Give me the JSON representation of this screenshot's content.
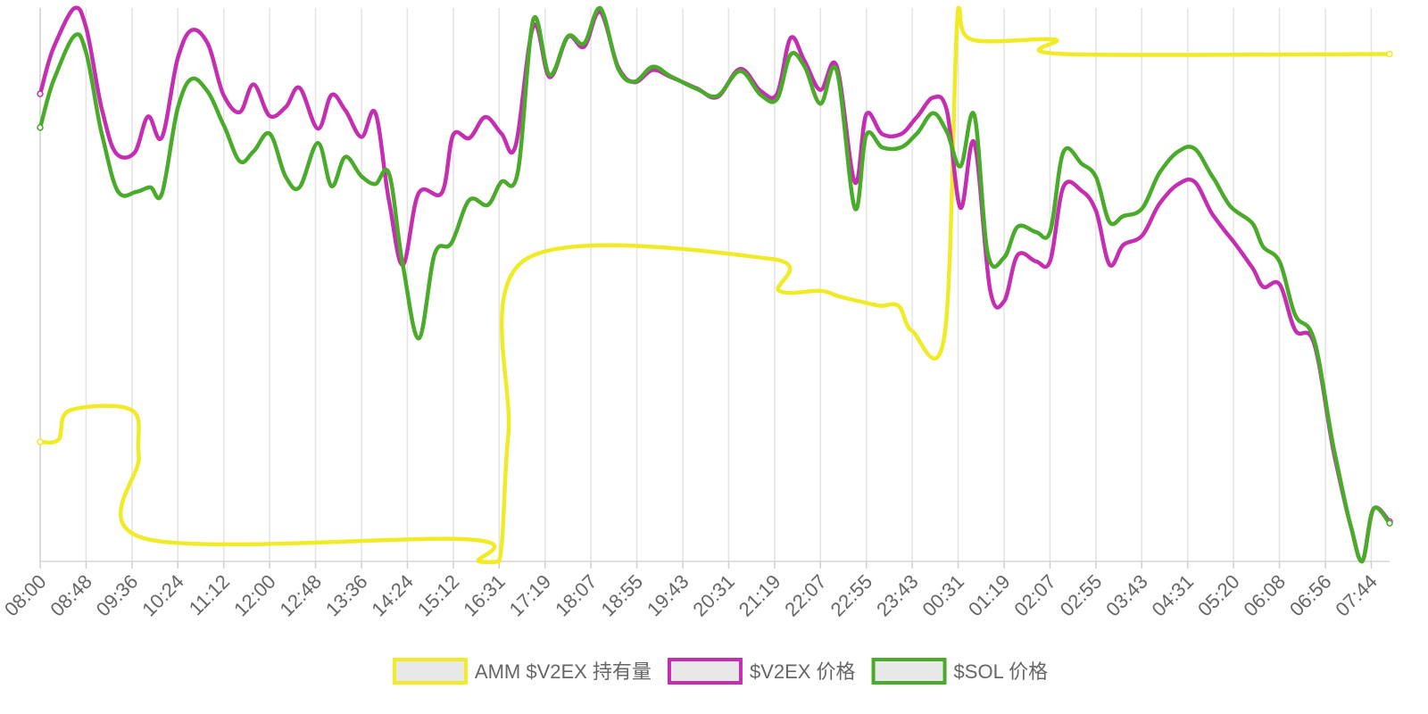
{
  "chart_data": {
    "type": "line",
    "x_ticks": [
      "08:00",
      "08:48",
      "09:36",
      "10:24",
      "11:12",
      "12:00",
      "12:48",
      "13:36",
      "14:24",
      "15:12",
      "16:31",
      "17:19",
      "18:07",
      "18:55",
      "19:43",
      "20:31",
      "21:19",
      "22:07",
      "22:55",
      "23:43",
      "00:31",
      "01:19",
      "02:07",
      "02:55",
      "03:43",
      "04:31",
      "05:20",
      "06:08",
      "06:56",
      "07:44"
    ],
    "grid": true,
    "legend_position": "bottom",
    "ylim": [
      0,
      100
    ],
    "series": [
      {
        "name": "AMM $V2EX 持有量",
        "color": "#f0eb26",
        "points": [
          [
            0,
            21.6
          ],
          [
            0.4,
            22
          ],
          [
            0.65,
            27.3
          ],
          [
            2.0,
            27.3
          ],
          [
            2.15,
            19
          ],
          [
            2.35,
            4
          ],
          [
            9.3,
            4
          ],
          [
            9.55,
            0
          ],
          [
            10.0,
            0
          ],
          [
            10.2,
            23
          ],
          [
            10.6,
            54.7
          ],
          [
            15.9,
            54.7
          ],
          [
            16.1,
            48.9
          ],
          [
            17.0,
            48.9
          ],
          [
            17.4,
            47.9
          ],
          [
            17.9,
            46.9
          ],
          [
            18.3,
            46.2
          ],
          [
            18.7,
            46.2
          ],
          [
            19.0,
            41.6
          ],
          [
            19.7,
            40.7
          ],
          [
            20.0,
            100
          ],
          [
            20.3,
            94.3
          ],
          [
            22.1,
            94.3
          ],
          [
            22.3,
            91.7
          ],
          [
            29.4,
            91.7
          ]
        ]
      },
      {
        "name": "$V2EX 价格",
        "color": "#c42eb0",
        "points": [
          [
            0,
            84.5
          ],
          [
            0.3,
            93
          ],
          [
            0.75,
            100
          ],
          [
            1.0,
            96.5
          ],
          [
            1.35,
            81.5
          ],
          [
            1.65,
            73.8
          ],
          [
            2.05,
            73.8
          ],
          [
            2.35,
            80.4
          ],
          [
            2.65,
            76.6
          ],
          [
            3.0,
            91
          ],
          [
            3.3,
            96
          ],
          [
            3.65,
            93.6
          ],
          [
            4.0,
            84.2
          ],
          [
            4.35,
            81.2
          ],
          [
            4.65,
            86.2
          ],
          [
            5.0,
            80.5
          ],
          [
            5.35,
            82.1
          ],
          [
            5.65,
            85.6
          ],
          [
            6.05,
            78.2
          ],
          [
            6.35,
            84.3
          ],
          [
            6.65,
            81.5
          ],
          [
            7.0,
            76.7
          ],
          [
            7.3,
            81.1
          ],
          [
            7.6,
            65.2
          ],
          [
            7.9,
            53.6
          ],
          [
            8.25,
            66.6
          ],
          [
            8.75,
            66.6
          ],
          [
            9.0,
            77.1
          ],
          [
            9.35,
            76.5
          ],
          [
            9.7,
            80.3
          ],
          [
            10.05,
            77.3
          ],
          [
            10.35,
            74.9
          ],
          [
            10.75,
            96.8
          ],
          [
            11.1,
            87.5
          ],
          [
            11.5,
            94.8
          ],
          [
            11.85,
            93
          ],
          [
            12.2,
            99.3
          ],
          [
            12.6,
            89.2
          ],
          [
            12.95,
            86.6
          ],
          [
            13.35,
            88.8
          ],
          [
            13.75,
            87.5
          ],
          [
            14.3,
            85.5
          ],
          [
            14.75,
            83.9
          ],
          [
            15.25,
            89
          ],
          [
            15.7,
            85
          ],
          [
            16.05,
            84.4
          ],
          [
            16.35,
            94.6
          ],
          [
            16.65,
            90.5
          ],
          [
            17.0,
            85.2
          ],
          [
            17.35,
            89.6
          ],
          [
            17.75,
            68.5
          ],
          [
            18.0,
            80.8
          ],
          [
            18.35,
            77.2
          ],
          [
            18.75,
            77.2
          ],
          [
            19.1,
            80.3
          ],
          [
            19.45,
            83.8
          ],
          [
            19.75,
            81.6
          ],
          [
            20.05,
            63.9
          ],
          [
            20.35,
            75.7
          ],
          [
            20.7,
            48.9
          ],
          [
            21.0,
            47
          ],
          [
            21.3,
            55.4
          ],
          [
            21.7,
            54.2
          ],
          [
            22.0,
            54.2
          ],
          [
            22.3,
            67.8
          ],
          [
            22.7,
            66.9
          ],
          [
            23.0,
            63.4
          ],
          [
            23.3,
            53.6
          ],
          [
            23.6,
            57.2
          ],
          [
            24.0,
            58.8
          ],
          [
            24.4,
            64.8
          ],
          [
            24.8,
            68.2
          ],
          [
            25.15,
            68.6
          ],
          [
            25.55,
            62.6
          ],
          [
            25.95,
            58.3
          ],
          [
            26.4,
            53.2
          ],
          [
            26.65,
            49.6
          ],
          [
            27.0,
            50.1
          ],
          [
            27.35,
            41.7
          ],
          [
            27.75,
            39.5
          ],
          [
            28.2,
            19
          ],
          [
            28.55,
            6.5
          ],
          [
            28.8,
            0
          ],
          [
            29.05,
            9.5
          ],
          [
            29.4,
            7.2
          ]
        ]
      },
      {
        "name": "$SOL 价格",
        "color": "#4aab2a",
        "points": [
          [
            0,
            78.4
          ],
          [
            0.3,
            87.1
          ],
          [
            0.75,
            95
          ],
          [
            1.0,
            92
          ],
          [
            1.35,
            77
          ],
          [
            1.7,
            66.8
          ],
          [
            2.1,
            66.8
          ],
          [
            2.4,
            67.6
          ],
          [
            2.65,
            66.4
          ],
          [
            3.0,
            82
          ],
          [
            3.3,
            87.2
          ],
          [
            3.65,
            84.9
          ],
          [
            4.0,
            78.8
          ],
          [
            4.35,
            72.3
          ],
          [
            4.65,
            74.1
          ],
          [
            5.0,
            77.3
          ],
          [
            5.35,
            69.5
          ],
          [
            5.65,
            67.6
          ],
          [
            6.05,
            75.6
          ],
          [
            6.35,
            67.8
          ],
          [
            6.65,
            73.1
          ],
          [
            7.0,
            69.6
          ],
          [
            7.3,
            68.2
          ],
          [
            7.6,
            70.1
          ],
          [
            7.9,
            53.6
          ],
          [
            8.25,
            40.3
          ],
          [
            8.6,
            55.7
          ],
          [
            8.95,
            57.4
          ],
          [
            9.35,
            65.3
          ],
          [
            9.75,
            64.4
          ],
          [
            10.05,
            68.6
          ],
          [
            10.4,
            70.1
          ],
          [
            10.75,
            98.1
          ],
          [
            11.1,
            87.9
          ],
          [
            11.5,
            94.9
          ],
          [
            11.85,
            93.6
          ],
          [
            12.2,
            100
          ],
          [
            12.6,
            88.9
          ],
          [
            12.95,
            86.7
          ],
          [
            13.35,
            89.4
          ],
          [
            13.75,
            87.6
          ],
          [
            14.3,
            85.4
          ],
          [
            14.75,
            84.1
          ],
          [
            15.25,
            88.6
          ],
          [
            15.7,
            84.3
          ],
          [
            16.05,
            83.5
          ],
          [
            16.35,
            91.6
          ],
          [
            16.65,
            89.5
          ],
          [
            17.0,
            82.7
          ],
          [
            17.35,
            88.8
          ],
          [
            17.75,
            63.8
          ],
          [
            18.0,
            77.1
          ],
          [
            18.35,
            74.8
          ],
          [
            18.75,
            74.8
          ],
          [
            19.1,
            77.3
          ],
          [
            19.45,
            81
          ],
          [
            19.75,
            77.7
          ],
          [
            20.05,
            71.4
          ],
          [
            20.35,
            80.7
          ],
          [
            20.65,
            55.4
          ],
          [
            21.0,
            54.9
          ],
          [
            21.3,
            60.5
          ],
          [
            21.7,
            59.5
          ],
          [
            22.0,
            59.5
          ],
          [
            22.3,
            74.1
          ],
          [
            22.7,
            71.8
          ],
          [
            23.0,
            69.5
          ],
          [
            23.3,
            61.3
          ],
          [
            23.6,
            62.4
          ],
          [
            24.0,
            63.7
          ],
          [
            24.4,
            70.4
          ],
          [
            24.8,
            74.1
          ],
          [
            25.15,
            74.6
          ],
          [
            25.55,
            69.4
          ],
          [
            25.95,
            64
          ],
          [
            26.4,
            61.2
          ],
          [
            26.65,
            56.8
          ],
          [
            27.0,
            54.2
          ],
          [
            27.35,
            44.4
          ],
          [
            27.75,
            40.2
          ],
          [
            28.2,
            19.7
          ],
          [
            28.55,
            6.5
          ],
          [
            28.8,
            0
          ],
          [
            29.05,
            9.5
          ],
          [
            29.4,
            6.9
          ]
        ]
      }
    ]
  }
}
